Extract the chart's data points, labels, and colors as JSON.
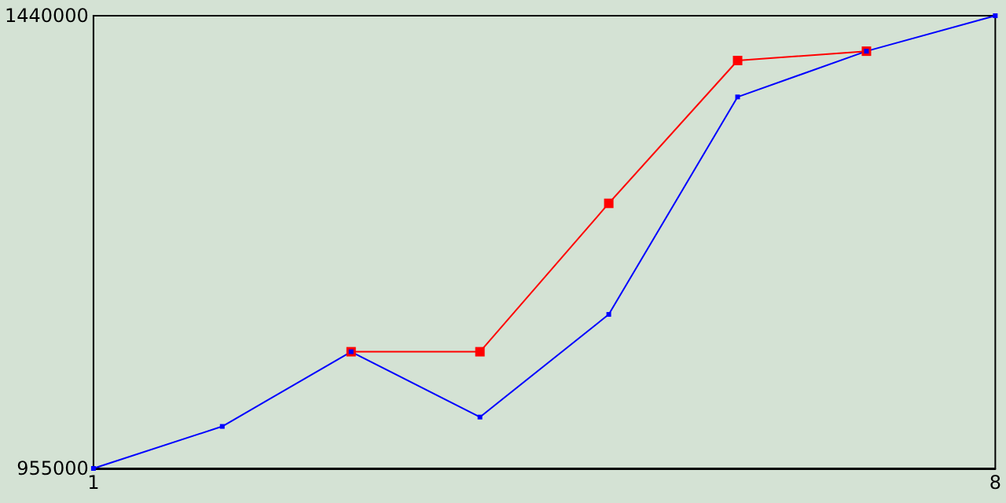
{
  "chart_data": {
    "type": "line",
    "x": [
      1,
      2,
      3,
      4,
      5,
      6,
      7,
      8
    ],
    "series": [
      {
        "color": "#ff0000",
        "values": [
          null,
          null,
          1080000,
          1080000,
          1239000,
          1392000,
          1402000,
          null
        ]
      },
      {
        "color": "#0000ff",
        "values": [
          955000,
          1000000,
          1080000,
          1010000,
          1120000,
          1353000,
          1402000,
          1440000
        ]
      }
    ],
    "xlim": [
      1,
      8
    ],
    "xticks": [
      1,
      8
    ],
    "ylim": [
      955000,
      1440000
    ],
    "yticks": [
      955000,
      1440000
    ],
    "grid": false,
    "marker": "square",
    "line_style": "solid"
  }
}
